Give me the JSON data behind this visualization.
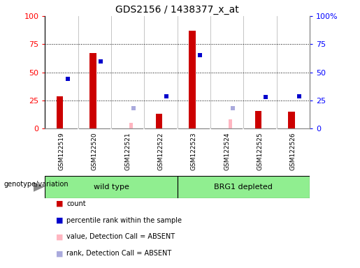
{
  "title": "GDS2156 / 1438377_x_at",
  "samples": [
    "GSM122519",
    "GSM122520",
    "GSM122521",
    "GSM122522",
    "GSM122523",
    "GSM122524",
    "GSM122525",
    "GSM122526"
  ],
  "count_values": [
    29,
    67,
    null,
    13,
    87,
    null,
    16,
    15
  ],
  "percentile_rank": [
    44,
    60,
    null,
    29,
    65,
    null,
    28,
    29
  ],
  "absent_value": [
    null,
    null,
    5,
    null,
    null,
    8,
    null,
    null
  ],
  "absent_rank": [
    null,
    null,
    18,
    null,
    null,
    18,
    null,
    null
  ],
  "ylim": [
    0,
    100
  ],
  "yticks": [
    0,
    25,
    50,
    75,
    100
  ],
  "bar_color": "#CC0000",
  "rank_color": "#0000CC",
  "absent_bar_color": "#FFB6C1",
  "absent_rank_color": "#AAAADD",
  "bg_color": "#C8C8C8",
  "group_color": "#90EE90",
  "genotype_label": "genotype/variation",
  "group1_label": "wild type",
  "group2_label": "BRG1 depleted",
  "legend_items": [
    {
      "label": "count",
      "color": "#CC0000"
    },
    {
      "label": "percentile rank within the sample",
      "color": "#0000CC"
    },
    {
      "label": "value, Detection Call = ABSENT",
      "color": "#FFB6C1"
    },
    {
      "label": "rank, Detection Call = ABSENT",
      "color": "#AAAADD"
    }
  ]
}
